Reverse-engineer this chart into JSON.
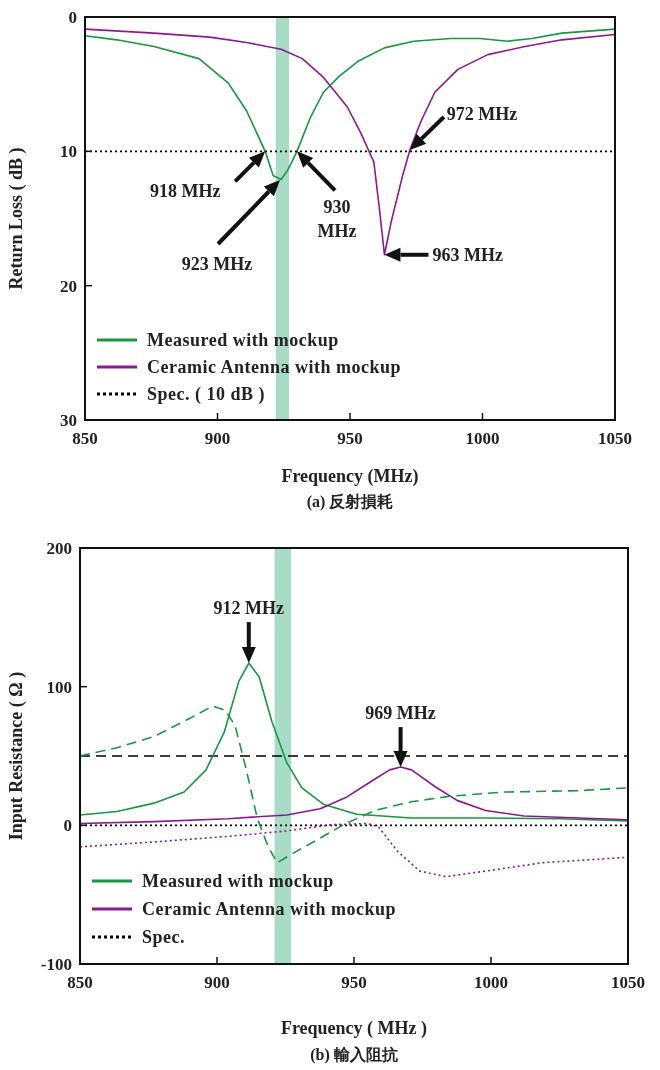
{
  "chart_data": [
    {
      "type": "line",
      "xlabel": "Frequency (MHz)",
      "ylabel": "Return Loss ( dB )",
      "xlim": [
        850,
        1050
      ],
      "ylim": [
        30,
        0
      ],
      "xticks": [
        850,
        900,
        950,
        1000,
        1050
      ],
      "yticks": [
        0,
        10,
        20,
        30
      ],
      "legend": "bottom left",
      "grid": false,
      "series": [
        {
          "name": "Measured with mockup",
          "color": "#1a9641",
          "line_style": "solid",
          "x": [
            850,
            862,
            876,
            893,
            904,
            911,
            918,
            921,
            924,
            926.5,
            930,
            935,
            940,
            946,
            953,
            963,
            974,
            988,
            999,
            1009.5,
            1018.6,
            1030,
            1050
          ],
          "values": [
            1.4,
            1.7,
            2.2,
            3.1,
            4.9,
            7.0,
            10,
            11.8,
            12.1,
            11.4,
            10,
            7.5,
            5.6,
            4.4,
            3.3,
            2.3,
            1.8,
            1.6,
            1.6,
            1.8,
            1.6,
            1.2,
            0.9
          ]
        },
        {
          "name": "Ceramic Antenna with mockup",
          "color": "#8b1a8f",
          "line_style": "solid",
          "x": [
            850,
            876,
            897,
            911,
            924,
            932,
            940,
            949,
            954,
            959,
            961,
            963,
            965.6,
            970,
            972.6,
            976.7,
            982,
            990.7,
            1002,
            1016,
            1030,
            1050
          ],
          "values": [
            0.9,
            1.2,
            1.5,
            1.9,
            2.4,
            3.1,
            4.5,
            6.7,
            8.6,
            10.8,
            14.1,
            17.7,
            15.2,
            11.7,
            9.9,
            7.8,
            5.6,
            3.9,
            2.8,
            2.2,
            1.7,
            1.3
          ]
        },
        {
          "name": "Spec. ( 10 dB )",
          "color": "#000000",
          "line_style": "dotted",
          "x": [
            850,
            1050
          ],
          "values": [
            10,
            10
          ]
        }
      ],
      "bands": [
        {
          "axis": "x",
          "from": 922,
          "to": 927,
          "color": "#a9dcc6"
        }
      ],
      "annotations": [
        {
          "text": "918 MHz",
          "x": 918,
          "y": 10
        },
        "923 MHz",
        {
          "text": "930 MHz",
          "x": 930,
          "y": 10
        },
        {
          "text": "963 MHz",
          "x": 963,
          "y": 17.7
        },
        {
          "text": "972 MHz",
          "x": 972.6,
          "y": 9.9
        },
        "(a) 反射損耗"
      ]
    },
    {
      "type": "line",
      "xlabel": "Frequency ( MHz )",
      "ylabel": "Input Resistance ( Ω )",
      "xlim": [
        850,
        1050
      ],
      "ylim": [
        -100,
        200
      ],
      "xticks": [
        850,
        900,
        950,
        1000,
        1050
      ],
      "yticks": [
        -100,
        0,
        100,
        200
      ],
      "legend": "bottom left",
      "grid": false,
      "series": [
        {
          "name": "Measured with mockup",
          "color": "#1a9641",
          "line_style": "solid",
          "x": [
            850,
            863.5,
            877,
            888,
            896,
            902.6,
            908,
            911.6,
            915.4,
            920,
            925.5,
            931,
            939,
            951,
            971,
            998,
            1025,
            1050
          ],
          "values": [
            7.5,
            10,
            16,
            24,
            40,
            67,
            104,
            117,
            107,
            75,
            45,
            27,
            15,
            8,
            5.3,
            5.3,
            4.8,
            3.2
          ]
        },
        {
          "name": "Ceramic Antenna with mockup",
          "color": "#8b1a8f",
          "line_style": "solid",
          "x": [
            850,
            877,
            904,
            925.5,
            937.7,
            947,
            956.5,
            963,
            967,
            971,
            979.5,
            987.6,
            998,
            1012,
            1050
          ],
          "values": [
            1.3,
            2.7,
            4.8,
            7.5,
            12,
            20,
            32,
            40,
            42,
            40,
            28,
            18,
            10.7,
            6.7,
            4
          ]
        },
        {
          "name": "Spec.",
          "color": "#000000",
          "line_style": "dotted",
          "x": [
            850,
            1050
          ],
          "values": [
            0,
            0
          ]
        },
        {
          "color": "#1a9641",
          "line_style": "dashed",
          "x": [
            850,
            863.5,
            877,
            888,
            898.5,
            903,
            906.6,
            910.7,
            914.7,
            918.8,
            922,
            927,
            936,
            947,
            958,
            971,
            985,
            1005,
            1032,
            1050
          ],
          "values": [
            50,
            56,
            64,
            75,
            86,
            83,
            72,
            40,
            5,
            -16,
            -27,
            -21,
            -11,
            1.3,
            11,
            17,
            21,
            24,
            25,
            27
          ]
        },
        {
          "color": "#8b1a8f",
          "line_style": "dotted",
          "x": [
            850,
            877,
            904,
            925.5,
            942,
            955,
            959,
            966,
            974,
            983.5,
            998,
            1018.6,
            1050
          ],
          "values": [
            -15.5,
            -12,
            -8,
            -4,
            0.5,
            1.3,
            -1.3,
            -19,
            -33,
            -37,
            -33,
            -27,
            -23
          ]
        }
      ],
      "ref_lines": [
        {
          "axis": "y",
          "value": 50,
          "color": "#000000",
          "line_style": "dashed"
        }
      ],
      "bands": [
        {
          "axis": "x",
          "from": 921,
          "to": 927,
          "color": "#a9dcc6"
        }
      ],
      "annotations": [
        {
          "text": "912 MHz",
          "x": 911.6,
          "y": 117
        },
        {
          "text": "969 MHz",
          "x": 967,
          "y": 42
        },
        "(b) 輸入阻抗"
      ]
    }
  ]
}
